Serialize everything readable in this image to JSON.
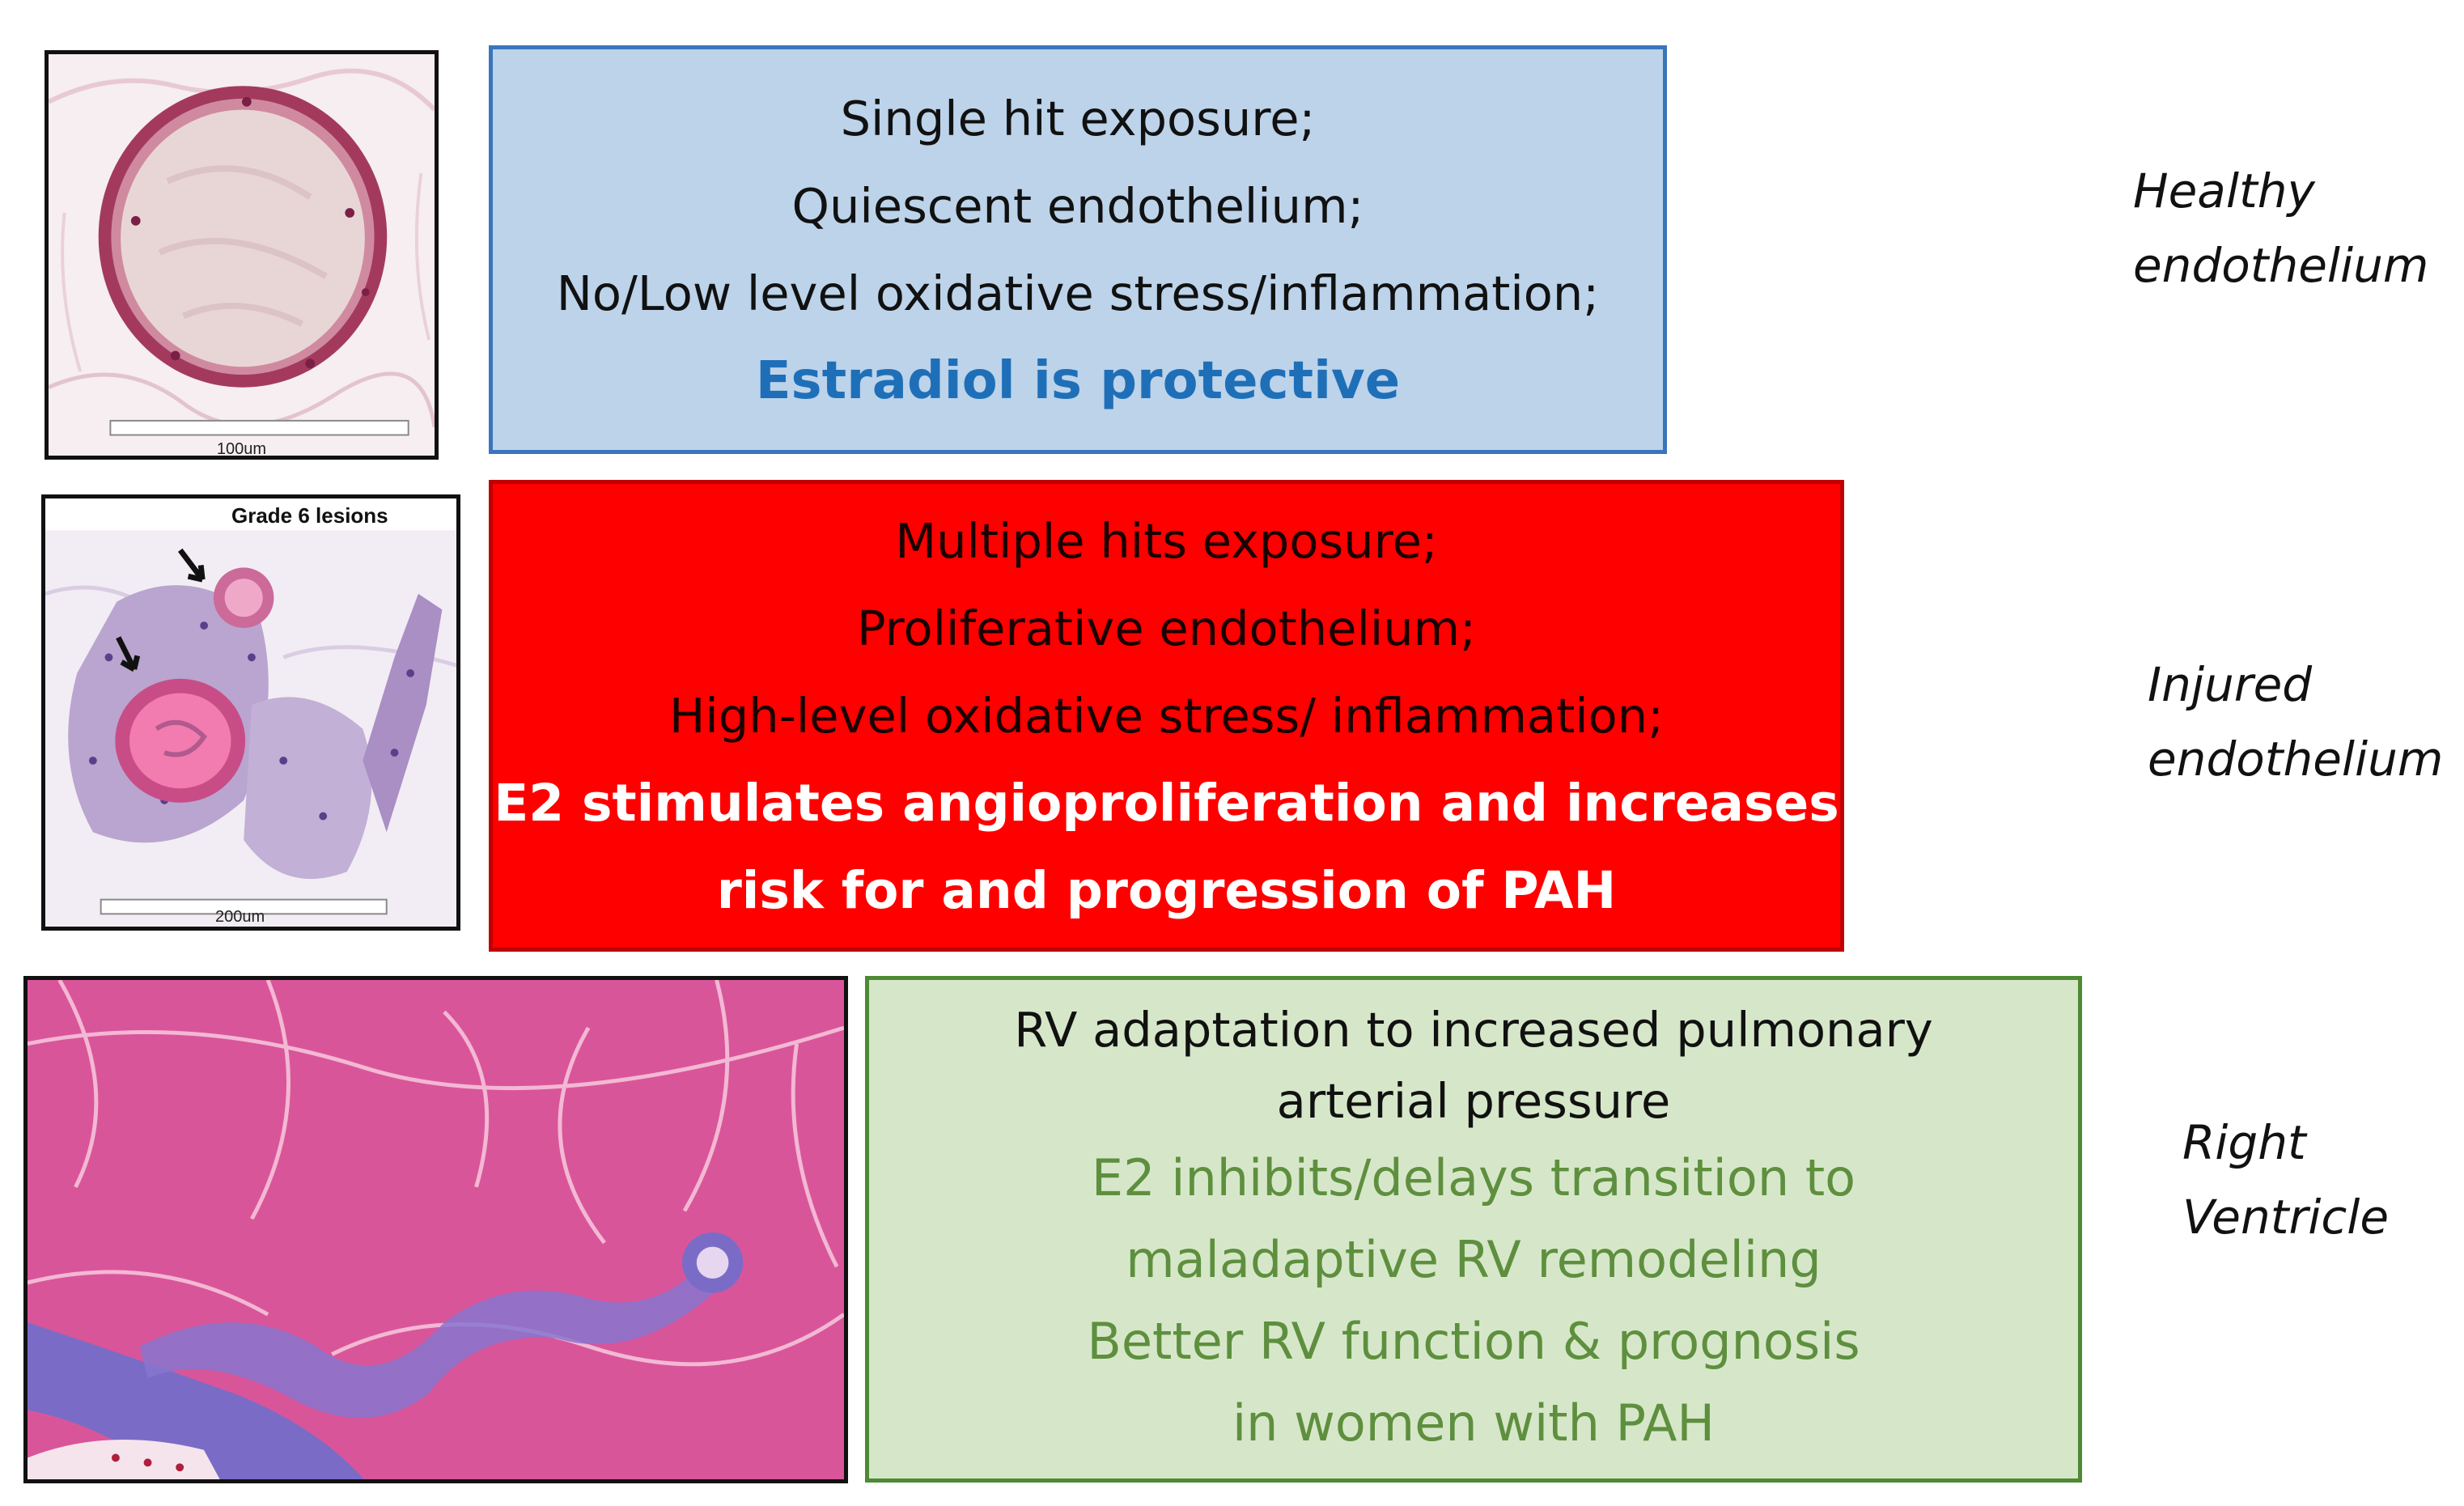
{
  "rows": [
    {
      "image": {
        "name": "healthy-vessel-histology",
        "scale_bar_label": "100um"
      },
      "box_lines": [
        "Single hit exposure;",
        "Quiescent endothelium;",
        "No/Low level  oxidative stress/inflammation;"
      ],
      "box_emphasis": [
        "Estradiol is protective"
      ],
      "side_label": [
        "Healthy",
        "endothelium"
      ]
    },
    {
      "image": {
        "name": "grade-6-lesions-histology",
        "caption": "Grade 6 lesions",
        "scale_bar_label": "200um"
      },
      "box_lines": [
        "Multiple hits exposure;",
        "Proliferative endothelium;",
        "High-level oxidative stress/ inflammation;"
      ],
      "box_emphasis": [
        "E2 stimulates angioproliferation and increases",
        "risk for and progression of  PAH"
      ],
      "side_label": [
        "Injured",
        "endothelium"
      ]
    },
    {
      "image": {
        "name": "right-ventricle-histology"
      },
      "box_lines": [
        "RV adaptation to increased pulmonary",
        "arterial  pressure"
      ],
      "box_emphasis": [
        "E2 inhibits/delays transition to",
        "maladaptive RV remodeling",
        "Better RV function & prognosis",
        "in women with PAH"
      ],
      "side_label": [
        "Right",
        "Ventricle"
      ]
    }
  ],
  "colors": {
    "healthy_box_fill": "#bcd3ea",
    "healthy_box_border": "#3b75bb",
    "healthy_emphasis_text": "#1f6fb8",
    "injured_box_fill": "#ff0000",
    "injured_box_border": "#c00000",
    "injured_emphasis_text": "#ffffff",
    "rv_box_fill": "#d6e7c9",
    "rv_box_border": "#4e8a33",
    "rv_emphasis_text": "#5e8f3e"
  }
}
